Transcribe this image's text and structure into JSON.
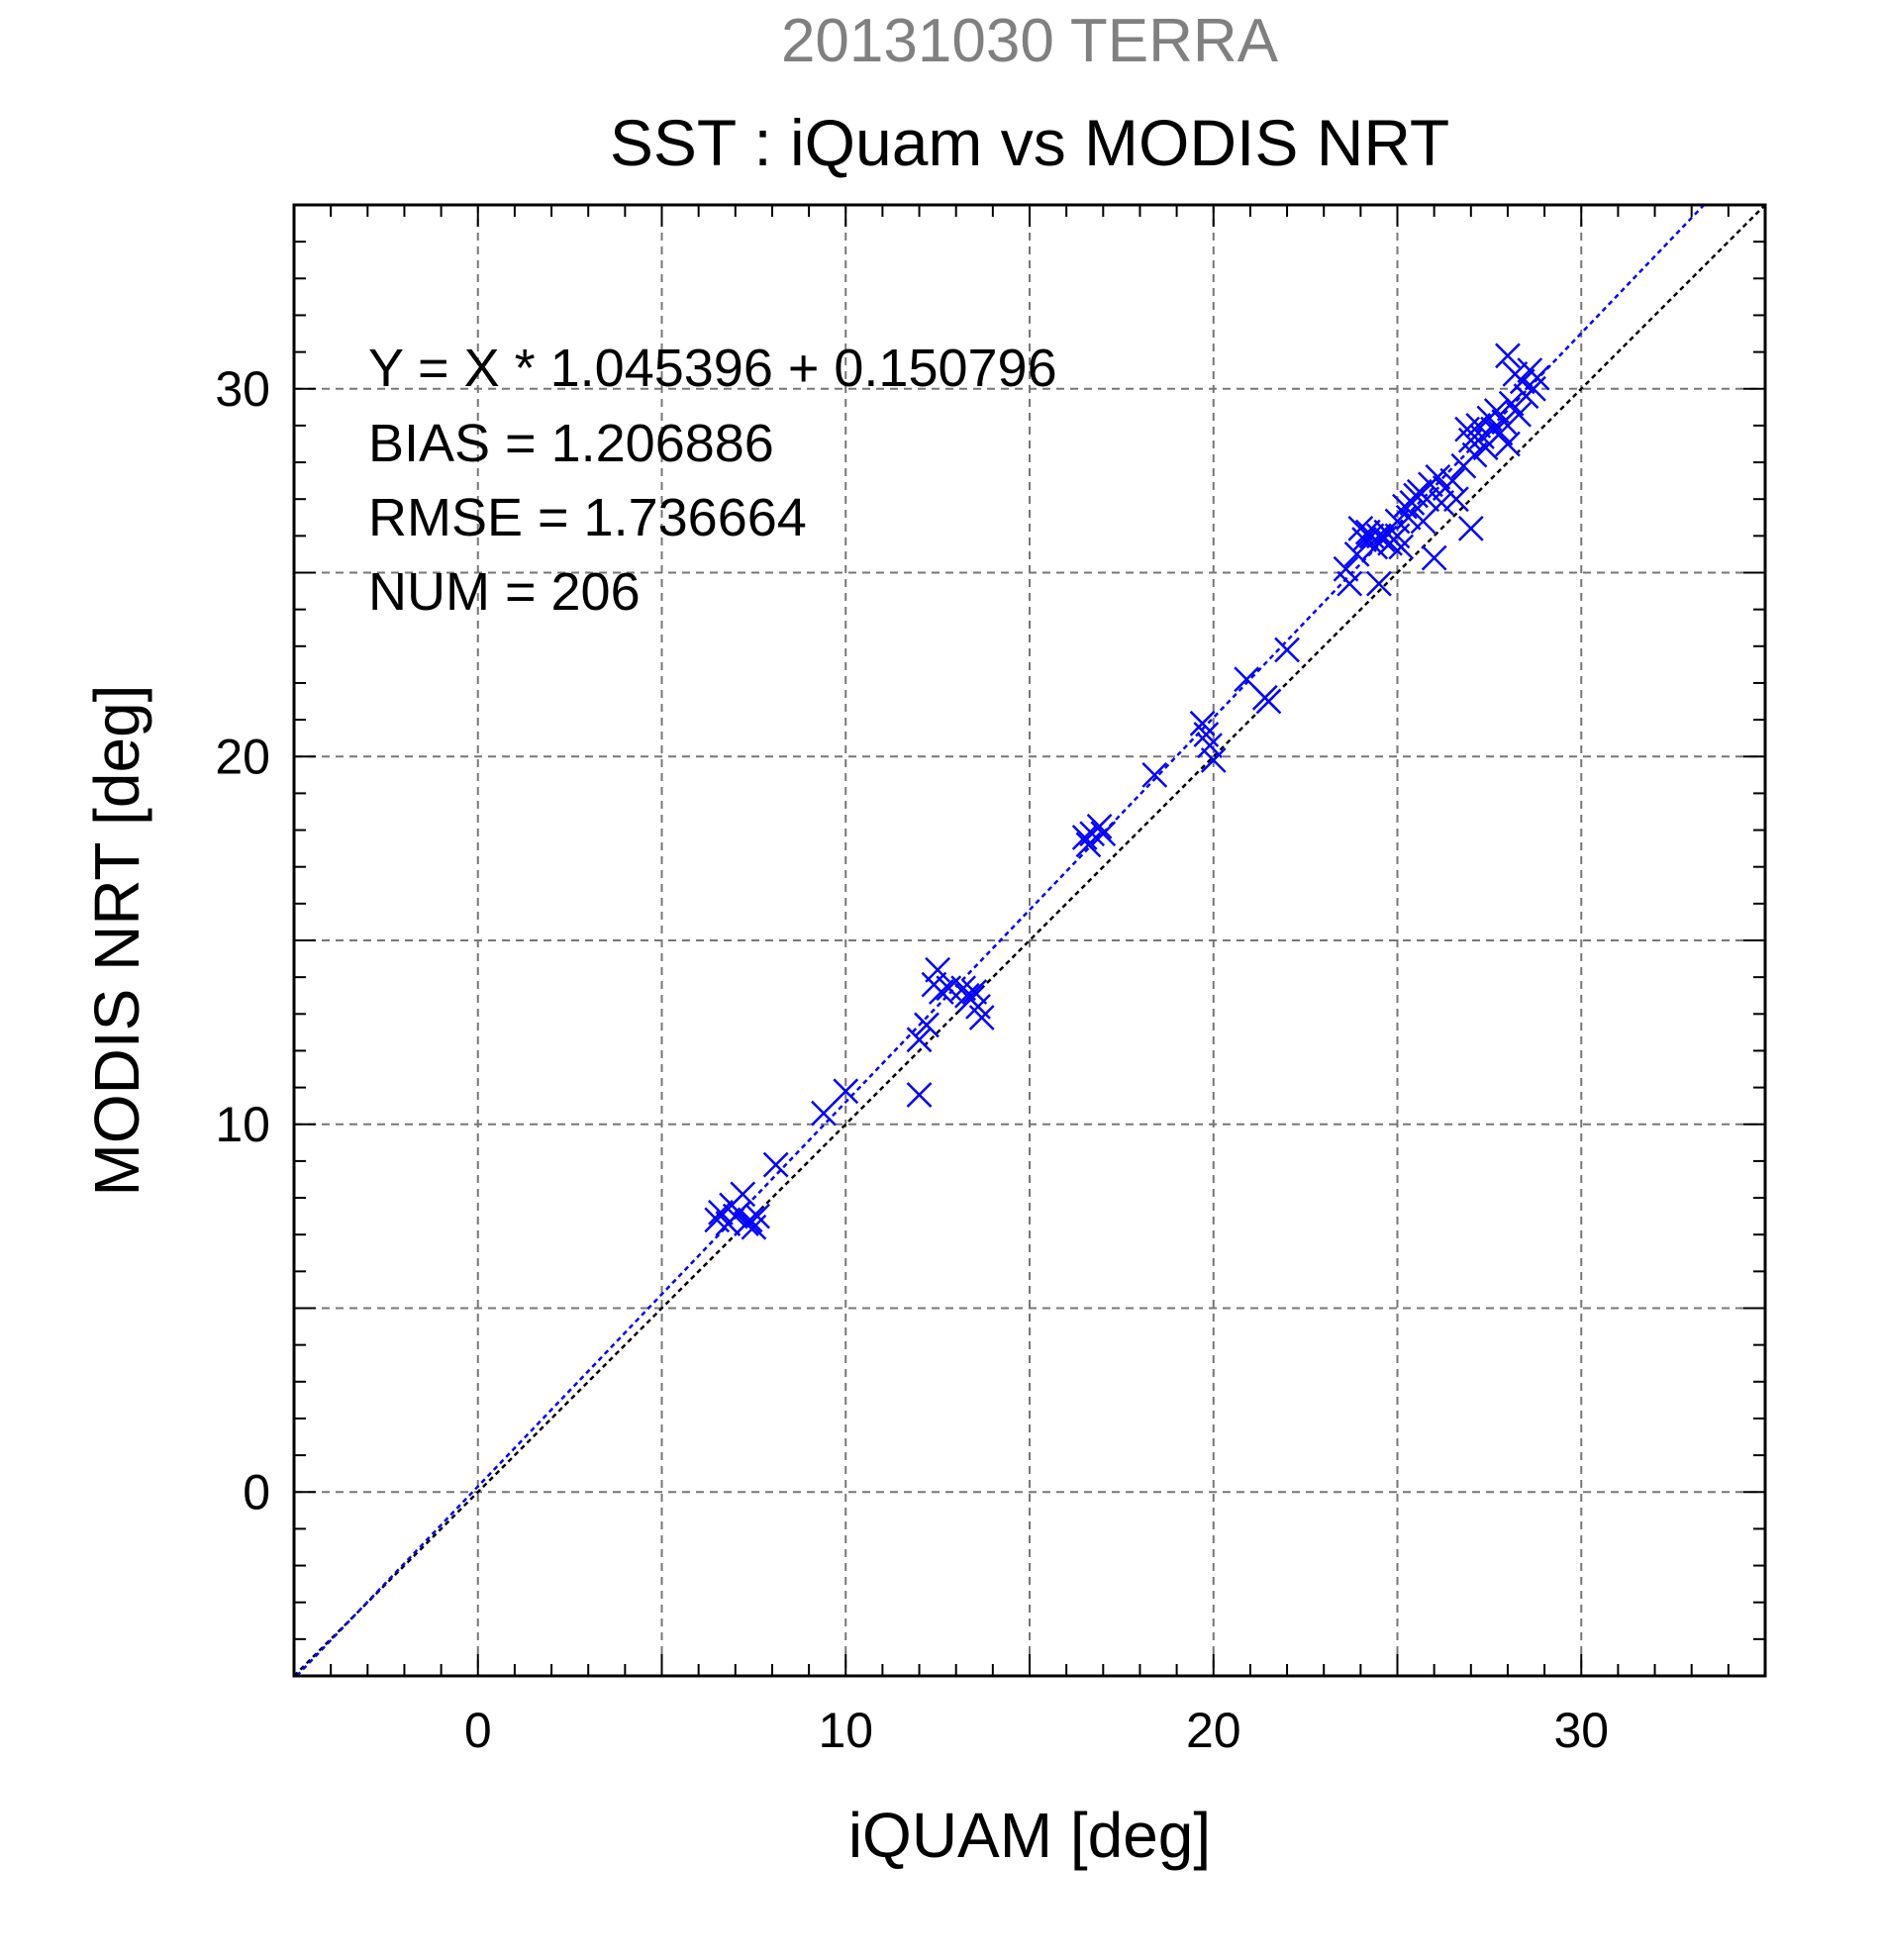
{
  "chart_data": {
    "type": "scatter",
    "suptitle": "20131030 TERRA",
    "title": "SST : iQuam vs MODIS NRT",
    "xlabel": "iQUAM [deg]",
    "ylabel": "MODIS NRT [deg]",
    "xlim": [
      -5,
      35
    ],
    "ylim": [
      -5,
      35
    ],
    "xticks": [
      0,
      10,
      20,
      30
    ],
    "yticks": [
      0,
      10,
      20,
      30
    ],
    "grid": true,
    "stats": [
      "Y = X * 1.045396 + 0.150796",
      "BIAS = 1.206886",
      "RMSE = 1.736664",
      "NUM = 206"
    ],
    "reference_line": {
      "slope": 1,
      "intercept": 0,
      "color": "#000000"
    },
    "fit_line": {
      "slope": 1.045396,
      "intercept": 0.150796,
      "color": "#0000ff"
    },
    "marker_color": "#0000ff",
    "marker": "x",
    "points": [
      [
        6.5,
        7.4
      ],
      [
        6.6,
        7.6
      ],
      [
        6.8,
        7.3
      ],
      [
        6.9,
        7.8
      ],
      [
        7.0,
        7.5
      ],
      [
        7.1,
        7.6
      ],
      [
        7.2,
        8.1
      ],
      [
        7.3,
        7.3
      ],
      [
        7.4,
        7.4
      ],
      [
        7.5,
        7.2
      ],
      [
        7.6,
        7.5
      ],
      [
        8.1,
        8.9
      ],
      [
        9.4,
        10.3
      ],
      [
        10.0,
        10.9
      ],
      [
        12.0,
        10.8
      ],
      [
        12.0,
        12.3
      ],
      [
        12.2,
        12.7
      ],
      [
        12.4,
        13.8
      ],
      [
        12.5,
        14.2
      ],
      [
        12.6,
        13.6
      ],
      [
        12.8,
        13.7
      ],
      [
        13.2,
        13.7
      ],
      [
        13.3,
        13.5
      ],
      [
        13.4,
        13.4
      ],
      [
        13.5,
        13.6
      ],
      [
        13.6,
        13.2
      ],
      [
        13.7,
        12.9
      ],
      [
        16.5,
        17.8
      ],
      [
        16.6,
        17.6
      ],
      [
        16.7,
        17.9
      ],
      [
        16.9,
        18.1
      ],
      [
        17.0,
        17.9
      ],
      [
        18.4,
        19.5
      ],
      [
        19.7,
        20.9
      ],
      [
        19.8,
        20.6
      ],
      [
        19.9,
        20.3
      ],
      [
        20.0,
        19.9
      ],
      [
        20.9,
        22.1
      ],
      [
        21.4,
        21.6
      ],
      [
        21.5,
        21.5
      ],
      [
        22.0,
        22.9
      ],
      [
        23.6,
        25.1
      ],
      [
        23.7,
        24.7
      ],
      [
        23.9,
        25.5
      ],
      [
        24.0,
        26.2
      ],
      [
        24.1,
        25.9
      ],
      [
        24.2,
        26.1
      ],
      [
        24.3,
        26.0
      ],
      [
        24.4,
        25.7
      ],
      [
        24.5,
        26.0
      ],
      [
        24.5,
        24.7
      ],
      [
        24.6,
        25.9
      ],
      [
        24.7,
        26.1
      ],
      [
        24.8,
        25.8
      ],
      [
        24.9,
        25.9
      ],
      [
        25.0,
        26.4
      ],
      [
        25.0,
        26.0
      ],
      [
        25.1,
        25.7
      ],
      [
        25.2,
        26.8
      ],
      [
        25.3,
        26.5
      ],
      [
        25.4,
        26.9
      ],
      [
        25.5,
        27.1
      ],
      [
        25.6,
        27.2
      ],
      [
        25.7,
        26.4
      ],
      [
        25.8,
        27.0
      ],
      [
        25.9,
        27.4
      ],
      [
        26.0,
        25.4
      ],
      [
        26.1,
        27.6
      ],
      [
        26.2,
        26.9
      ],
      [
        26.3,
        27.3
      ],
      [
        26.5,
        27.5
      ],
      [
        26.6,
        27.0
      ],
      [
        26.8,
        27.9
      ],
      [
        26.9,
        28.9
      ],
      [
        27.0,
        28.6
      ],
      [
        27.0,
        26.2
      ],
      [
        27.1,
        28.2
      ],
      [
        27.2,
        29.0
      ],
      [
        27.3,
        28.7
      ],
      [
        27.4,
        28.4
      ],
      [
        27.5,
        29.2
      ],
      [
        27.6,
        28.9
      ],
      [
        27.7,
        29.4
      ],
      [
        27.8,
        28.8
      ],
      [
        27.9,
        29.1
      ],
      [
        28.0,
        30.9
      ],
      [
        28.0,
        28.5
      ],
      [
        28.1,
        29.6
      ],
      [
        28.2,
        30.4
      ],
      [
        28.3,
        29.3
      ],
      [
        28.4,
        30.2
      ],
      [
        28.5,
        29.8
      ],
      [
        28.6,
        30.5
      ],
      [
        28.7,
        30.0
      ],
      [
        28.8,
        30.3
      ]
    ]
  }
}
